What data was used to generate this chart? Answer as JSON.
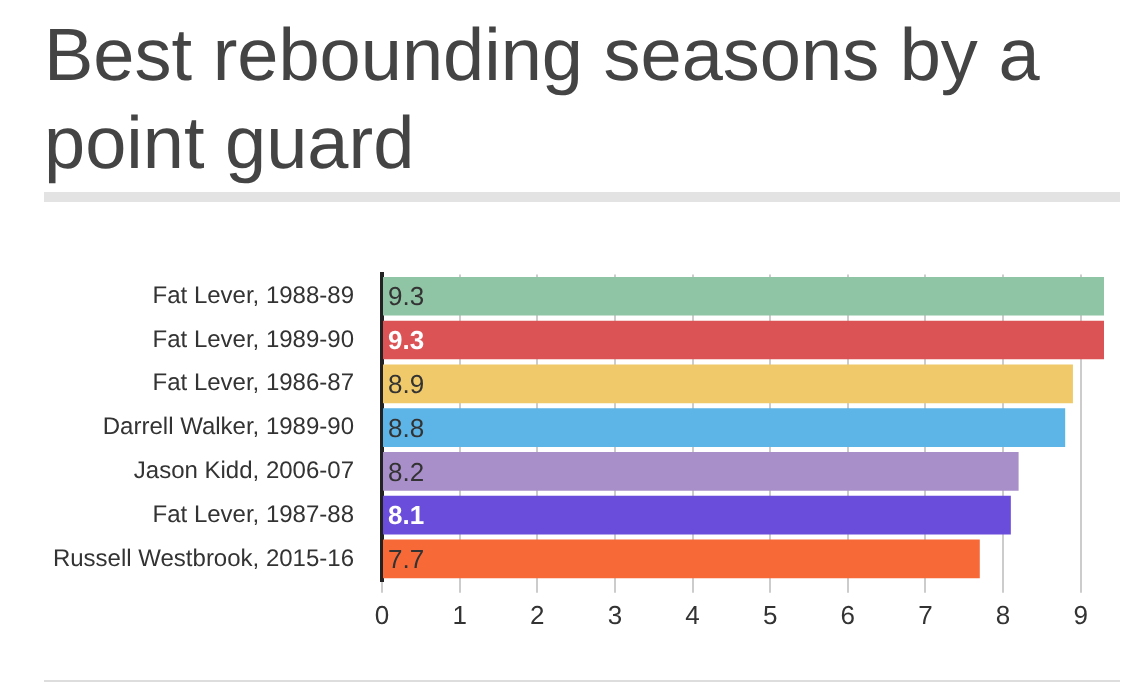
{
  "chart_data": {
    "type": "bar",
    "orientation": "horizontal",
    "title": "Best rebounding seasons by a point guard",
    "categories": [
      "Fat Lever, 1988-89",
      "Fat Lever, 1989-90",
      "Fat Lever, 1986-87",
      "Darrell Walker, 1989-90",
      "Jason Kidd, 2006-07",
      "Fat Lever, 1987-88",
      "Russell Westbrook, 2015-16"
    ],
    "values": [
      9.3,
      9.3,
      8.9,
      8.8,
      8.2,
      8.1,
      7.7
    ],
    "colors": [
      "#8fc4a4",
      "#dc5356",
      "#f0c96b",
      "#5db4e6",
      "#a98fc9",
      "#6a4ddb",
      "#f76a38"
    ],
    "xlim": [
      0,
      9.3
    ],
    "xticks": [
      0,
      1,
      2,
      3,
      4,
      5,
      6,
      7,
      8,
      9
    ],
    "grid": "x",
    "legend": false,
    "data_labels": true
  }
}
